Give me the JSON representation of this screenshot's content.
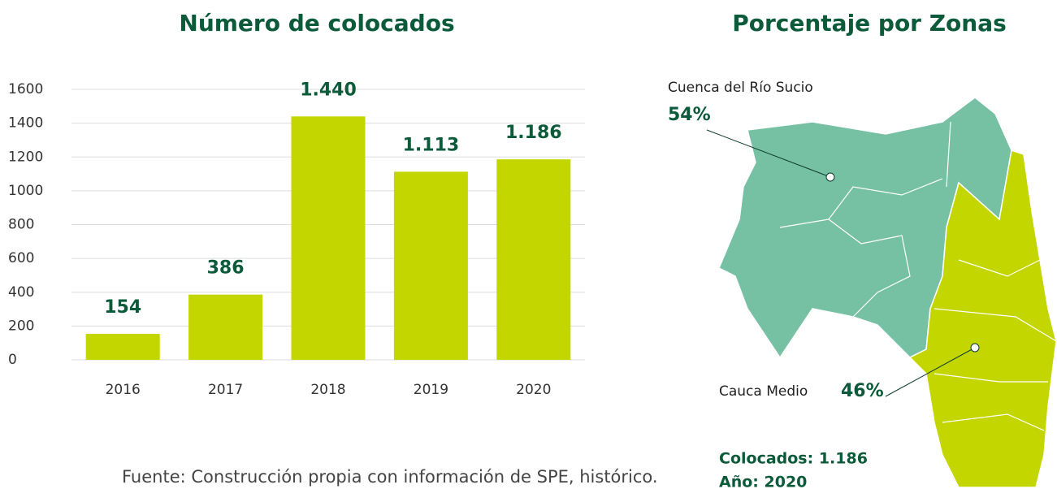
{
  "chart_data": {
    "type": "bar",
    "title": "Número de colocados",
    "categories": [
      "2016",
      "2017",
      "2018",
      "2019",
      "2020"
    ],
    "values": [
      154,
      386,
      1440,
      1113,
      1186
    ],
    "value_labels": [
      "154",
      "386",
      "1.440",
      "1.113",
      "1.186"
    ],
    "color": "#c4d600",
    "ylim": [
      0,
      1600
    ],
    "yticks": [
      0,
      200,
      400,
      600,
      800,
      1000,
      1200,
      1400,
      1600
    ],
    "grid": true
  },
  "source": "Fuente: Construcción propia con información de SPE, histórico.",
  "map": {
    "title": "Porcentaje por Zonas",
    "zones": [
      {
        "label": "Cuenca del Río Sucio",
        "value_label": "54%"
      },
      {
        "label": "Cauca Medio",
        "value_label": "46%"
      }
    ],
    "summary": [
      "Colocados: 1.186",
      "Año: 2020"
    ]
  }
}
